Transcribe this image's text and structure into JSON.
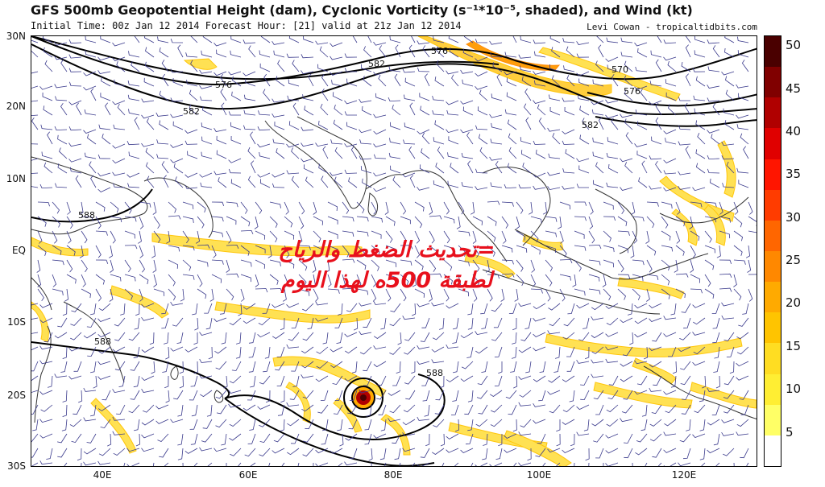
{
  "header": {
    "title": "GFS 500mb Geopotential Height (dam), Cyclonic Vorticity (s⁻¹*10⁻⁵, shaded), and Wind (kt)",
    "subtitle": "Initial Time: 00z Jan 12 2014 Forecast Hour: [21] valid at 21z Jan 12 2014",
    "credit": "Levi Cowan - tropicaltidbits.com"
  },
  "axes": {
    "lat_labels": [
      "30N",
      "20N",
      "10N",
      "EQ",
      "10S",
      "20S",
      "30S"
    ],
    "lon_labels": [
      "40E",
      "60E",
      "80E",
      "100E",
      "120E"
    ]
  },
  "contour_labels": [
    "576",
    "582",
    "576",
    "582",
    "570",
    "576",
    "582",
    "588",
    "588",
    "588"
  ],
  "colorbar": {
    "ticks": [
      "50",
      "45",
      "40",
      "35",
      "30",
      "25",
      "20",
      "15",
      "10",
      "5"
    ],
    "colors": [
      "#ffffff",
      "#ffff66",
      "#ffee33",
      "#ffdd22",
      "#ffc400",
      "#ffaa00",
      "#ff8800",
      "#ff6600",
      "#ff3c00",
      "#ff1500",
      "#e00000",
      "#b00000",
      "#800000",
      "#4a0000"
    ]
  },
  "overlay_text": {
    "line1": "=تحديث الضغط والرياح",
    "line2": "لطبقة 500ه لهذا اليوم"
  },
  "colors": {
    "overlay": "#e8101c",
    "coast": "#333333",
    "barb": "#3a3a8c",
    "contour": "#000000"
  }
}
